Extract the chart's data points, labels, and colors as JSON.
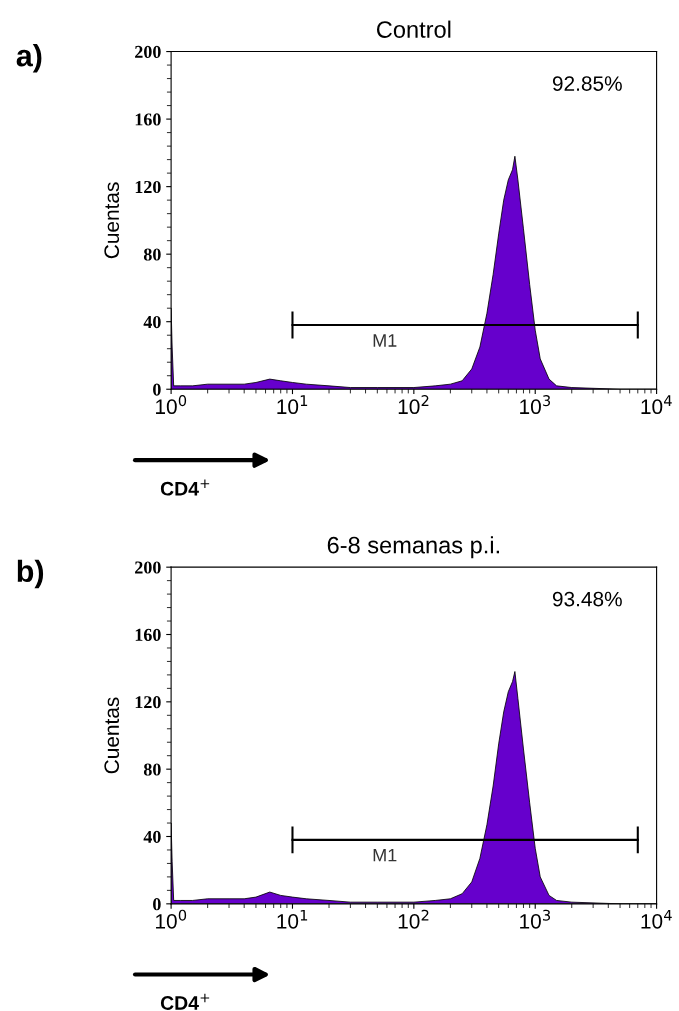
{
  "chart_data": [
    {
      "type": "area",
      "title": "Control",
      "xlabel": "CD4$^{+}$",
      "ylabel": "Cuentas",
      "log": "x",
      "xlim": [
        1,
        10000
      ],
      "xticks": [
        {
          "value": 1,
          "label": "10$^{0}$"
        },
        {
          "value": 10,
          "label": "10$^{1}$"
        },
        {
          "value": 100,
          "label": "10$^{2}$"
        },
        {
          "value": 1000,
          "label": "10$^{3}$"
        },
        {
          "value": 10000,
          "label": "10$^{4}$"
        }
      ],
      "ylim": [
        0,
        200
      ],
      "yticks": [
        0,
        40,
        80,
        120,
        160,
        200
      ],
      "grid": false,
      "annotations": [
        "a)",
        "92.85%",
        "M1"
      ],
      "series": [
        {
          "color": "#6600cc",
          "x": [
            1,
            1.02,
            1.05,
            1.2,
            1.5,
            2,
            3,
            4,
            5,
            6.5,
            8,
            10,
            13,
            20,
            30,
            50,
            100,
            150,
            200,
            250,
            300,
            350,
            400,
            450,
            500,
            550,
            600,
            650,
            680,
            720,
            800,
            900,
            1000,
            1100,
            1300,
            1500,
            2000,
            5000,
            10000
          ],
          "values": [
            48,
            25,
            2,
            2,
            2,
            3,
            3,
            3,
            4,
            6,
            5,
            4,
            3,
            2,
            1,
            1,
            1,
            2,
            3,
            5,
            12,
            25,
            45,
            68,
            92,
            112,
            124,
            130,
            138,
            124,
            95,
            62,
            35,
            18,
            6,
            2,
            1,
            0,
            0
          ]
        },
        {
          "type": "line",
          "color": "#000000",
          "x": [
            10,
            7000
          ],
          "values": [
            38,
            38
          ],
          "errors": [
            8,
            8
          ]
        }
      ]
    },
    {
      "type": "area",
      "title": "6-8 semanas p.i.",
      "xlabel": "CD4$^{+}$",
      "ylabel": "Cuentas",
      "log": "x",
      "xlim": [
        1,
        10000
      ],
      "xticks": [
        {
          "value": 1,
          "label": "10$^{0}$"
        },
        {
          "value": 10,
          "label": "10$^{1}$"
        },
        {
          "value": 100,
          "label": "10$^{2}$"
        },
        {
          "value": 1000,
          "label": "10$^{3}$"
        },
        {
          "value": 10000,
          "label": "10$^{4}$"
        }
      ],
      "ylim": [
        0,
        200
      ],
      "yticks": [
        0,
        40,
        80,
        120,
        160,
        200
      ],
      "grid": false,
      "annotations": [
        "b)",
        "93.48%",
        "M1"
      ],
      "series": [
        {
          "color": "#6600cc",
          "x": [
            1,
            1.02,
            1.05,
            1.2,
            1.5,
            2,
            3,
            4,
            5,
            6.5,
            8,
            10,
            13,
            20,
            30,
            50,
            100,
            150,
            200,
            250,
            300,
            350,
            400,
            450,
            500,
            550,
            600,
            650,
            680,
            720,
            800,
            900,
            1000,
            1100,
            1300,
            1500,
            2000,
            5000,
            10000
          ],
          "values": [
            48,
            25,
            2,
            2,
            2,
            3,
            3,
            3,
            4,
            7,
            5,
            4,
            3,
            2,
            1,
            1,
            1,
            2,
            3,
            6,
            13,
            27,
            47,
            70,
            95,
            114,
            126,
            132,
            138,
            122,
            92,
            60,
            33,
            16,
            5,
            2,
            1,
            0,
            0
          ]
        },
        {
          "type": "line",
          "color": "#000000",
          "x": [
            10,
            7000
          ],
          "values": [
            38,
            38
          ],
          "errors": [
            8,
            8
          ]
        }
      ]
    }
  ]
}
